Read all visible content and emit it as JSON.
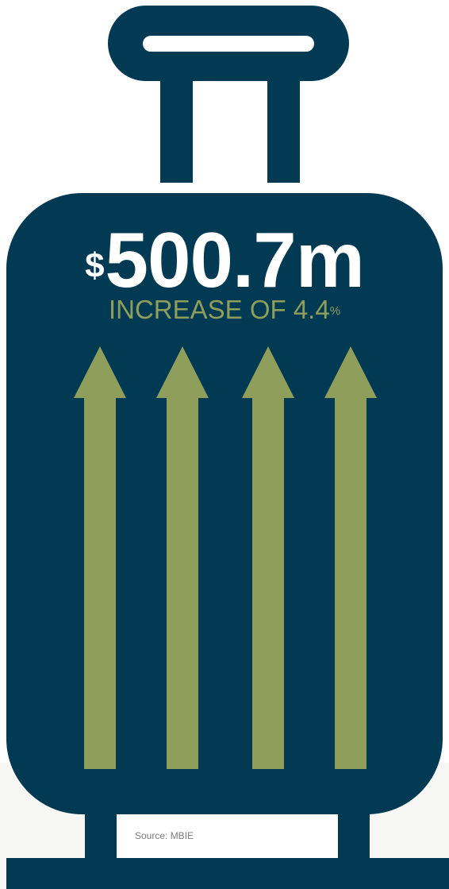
{
  "headline": {
    "currency": "$",
    "amount": "500.7m"
  },
  "subtitle": {
    "text": "INCREASE OF 4.4",
    "percent_sign": "%"
  },
  "arrows": {
    "count": 4,
    "color": "#8f9e5b"
  },
  "icons": {
    "suitcase": "suitcase-icon",
    "arrow": "up-arrow-icon"
  },
  "colors": {
    "suitcase": "#023a53",
    "accent": "#8f9e5b",
    "text_light": "#ffffff",
    "source_text": "#7b7b7b"
  },
  "source": {
    "label": "Source: MBIE"
  }
}
